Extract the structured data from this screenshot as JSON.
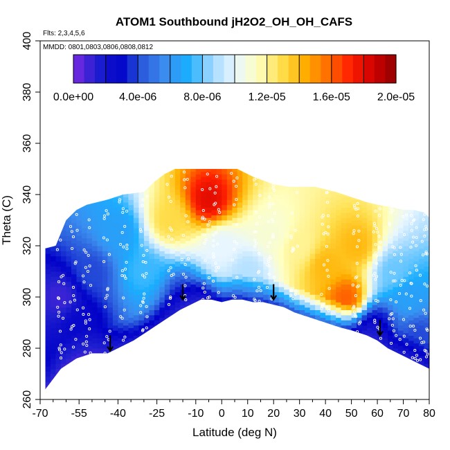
{
  "chart_data": {
    "type": "heatmap",
    "title": "ATOM1 Southbound jH2O2_OH_OH_CAFS",
    "flights_note": "Flts: 2,3,4,5,6",
    "dates_note": "MMDD: 0801,0803,0806,0808,0812",
    "xlabel": "Latitude (deg N)",
    "ylabel": "Theta (C)",
    "xlim": [
      -70,
      80
    ],
    "ylim": [
      260,
      400
    ],
    "x_ticks": [
      "-70",
      "-55",
      "-40",
      "-25",
      "-10",
      "0",
      "10",
      "20",
      "30",
      "40",
      "50",
      "60",
      "70",
      "80"
    ],
    "x_tick_values": [
      -70,
      -55,
      -40,
      -25,
      -10,
      0,
      10,
      20,
      30,
      40,
      50,
      60,
      70,
      80
    ],
    "x_minor_ticks": [
      -65,
      -60,
      -50,
      -45,
      -35,
      -30,
      -20,
      -15,
      -5,
      5,
      15,
      25,
      35,
      45,
      55,
      65,
      75
    ],
    "y_ticks": [
      "260",
      "280",
      "300",
      "320",
      "340",
      "360",
      "380",
      "400"
    ],
    "y_tick_values": [
      260,
      280,
      300,
      320,
      340,
      360,
      380,
      400
    ],
    "colorbar": {
      "min": 0,
      "max": 2e-05,
      "tick_labels": [
        "0.0e+00",
        "4.0e-06",
        "8.0e-06",
        "1.2e-05",
        "1.6e-05",
        "2.0e-05"
      ],
      "tick_values": [
        0,
        4e-06,
        8e-06,
        1.2e-05,
        1.6e-05,
        2e-05
      ],
      "colors": [
        "#7a2be2",
        "#2020d0",
        "#0000c8",
        "#2b5bdc",
        "#3a8ef0",
        "#1aaeff",
        "#a0d8ff",
        "#e8f6ff",
        "#ffffc0",
        "#ffe050",
        "#ffb000",
        "#ff7000",
        "#ff2000",
        "#d00000",
        "#900000"
      ]
    },
    "boundary": {
      "top": [
        [
          -68,
          319
        ],
        [
          -64,
          320
        ],
        [
          -60,
          330
        ],
        [
          -56,
          334
        ],
        [
          -52,
          336
        ],
        [
          -44,
          338
        ],
        [
          -38,
          340
        ],
        [
          -30,
          341
        ],
        [
          -26,
          345
        ],
        [
          -22,
          348
        ],
        [
          -18,
          350
        ],
        [
          -10,
          350
        ],
        [
          -4,
          350
        ],
        [
          0,
          350
        ],
        [
          6,
          350
        ],
        [
          12,
          347
        ],
        [
          20,
          344
        ],
        [
          26,
          343
        ],
        [
          36,
          343
        ],
        [
          44,
          341
        ],
        [
          50,
          339
        ],
        [
          56,
          337
        ],
        [
          60,
          336
        ],
        [
          66,
          335
        ],
        [
          70,
          334
        ],
        [
          74,
          334
        ],
        [
          78,
          333
        ],
        [
          80,
          331
        ]
      ],
      "bottom": [
        [
          -68,
          264
        ],
        [
          -62,
          272
        ],
        [
          -56,
          276
        ],
        [
          -50,
          278
        ],
        [
          -44,
          278
        ],
        [
          -40,
          280
        ],
        [
          -34,
          283
        ],
        [
          -28,
          287
        ],
        [
          -22,
          291
        ],
        [
          -16,
          295
        ],
        [
          -12,
          297
        ],
        [
          -8,
          299
        ],
        [
          -4,
          299
        ],
        [
          0,
          298
        ],
        [
          4,
          299
        ],
        [
          8,
          299
        ],
        [
          12,
          298
        ],
        [
          16,
          298
        ],
        [
          20,
          297
        ],
        [
          24,
          296
        ],
        [
          28,
          294
        ],
        [
          34,
          292
        ],
        [
          40,
          290
        ],
        [
          46,
          288
        ],
        [
          50,
          287
        ],
        [
          56,
          285
        ],
        [
          60,
          283
        ],
        [
          64,
          280
        ],
        [
          68,
          278
        ],
        [
          72,
          276
        ],
        [
          76,
          274
        ],
        [
          80,
          272
        ]
      ]
    },
    "field_features": [
      {
        "lat": -62,
        "theta": 300,
        "value": 1e-06
      },
      {
        "lat": -55,
        "theta": 290,
        "value": 2.5e-06
      },
      {
        "lat": -50,
        "theta": 310,
        "value": 4e-06
      },
      {
        "lat": -40,
        "theta": 325,
        "value": 6.5e-06
      },
      {
        "lat": -30,
        "theta": 310,
        "value": 7.5e-06
      },
      {
        "lat": -20,
        "theta": 330,
        "value": 1.3e-05
      },
      {
        "lat": -15,
        "theta": 300,
        "value": 3.5e-06
      },
      {
        "lat": -5,
        "theta": 338,
        "value": 1.8e-05
      },
      {
        "lat": 0,
        "theta": 320,
        "value": 1e-05
      },
      {
        "lat": 10,
        "theta": 310,
        "value": 9e-06
      },
      {
        "lat": 20,
        "theta": 325,
        "value": 1.1e-05
      },
      {
        "lat": 30,
        "theta": 320,
        "value": 1.2e-05
      },
      {
        "lat": 40,
        "theta": 312,
        "value": 1.4e-05
      },
      {
        "lat": 48,
        "theta": 300,
        "value": 1.6e-05
      },
      {
        "lat": 52,
        "theta": 320,
        "value": 1.4e-05
      },
      {
        "lat": 60,
        "theta": 290,
        "value": 3e-06
      },
      {
        "lat": 66,
        "theta": 310,
        "value": 8e-06
      },
      {
        "lat": 72,
        "theta": 300,
        "value": 6.5e-06
      },
      {
        "lat": 76,
        "theta": 285,
        "value": 4e-06
      }
    ],
    "arrows": [
      {
        "lat": -43,
        "theta": 282
      },
      {
        "lat": -15,
        "theta": 302
      },
      {
        "lat": 20,
        "theta": 302
      },
      {
        "lat": 61,
        "theta": 288
      }
    ]
  }
}
